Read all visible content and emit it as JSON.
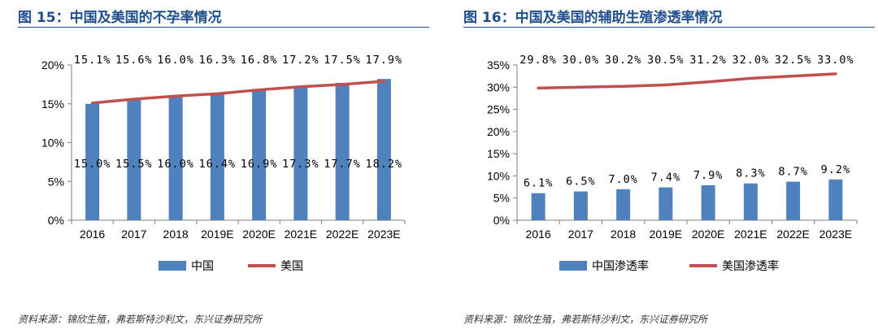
{
  "chart_data": [
    {
      "type": "bar",
      "title": "图 15：中国及美国的不孕率情况",
      "source": "资料来源：锦欣生殖，弗若斯特沙利文，东兴证券研究所",
      "categories": [
        "2016",
        "2017",
        "2018",
        "2019E",
        "2020E",
        "2021E",
        "2022E",
        "2023E"
      ],
      "ylim": [
        0,
        20
      ],
      "yticks": [
        "0%",
        "5%",
        "10%",
        "15%",
        "20%"
      ],
      "series": [
        {
          "name": "中国",
          "kind": "bar",
          "color": "#4f81bd",
          "values": [
            15.0,
            15.5,
            16.0,
            16.4,
            16.9,
            17.3,
            17.7,
            18.2
          ],
          "labels": [
            "15.0%",
            "15.5%",
            "16.0%",
            "16.4%",
            "16.9%",
            "17.3%",
            "17.7%",
            "18.2%"
          ]
        },
        {
          "name": "美国",
          "kind": "line",
          "color": "#c0504d",
          "values": [
            15.1,
            15.6,
            16.0,
            16.3,
            16.8,
            17.2,
            17.5,
            17.9
          ],
          "labels": [
            "15.1%",
            "15.6%",
            "16.0%",
            "16.3%",
            "16.8%",
            "17.2%",
            "17.5%",
            "17.9%"
          ]
        }
      ],
      "legend": "bottom"
    },
    {
      "type": "bar",
      "title": "图 16：中国及美国的辅助生殖渗透率情况",
      "source": "资料来源：锦欣生殖，弗若斯特沙利文，东兴证券研究所",
      "categories": [
        "2016",
        "2017",
        "2018",
        "2019E",
        "2020E",
        "2021E",
        "2022E",
        "2023E"
      ],
      "ylim": [
        0,
        35
      ],
      "yticks": [
        "0%",
        "5%",
        "10%",
        "15%",
        "20%",
        "25%",
        "30%",
        "35%"
      ],
      "series": [
        {
          "name": "中国渗透率",
          "kind": "bar",
          "color": "#4f81bd",
          "values": [
            6.1,
            6.5,
            7.0,
            7.4,
            7.9,
            8.3,
            8.7,
            9.2
          ],
          "labels": [
            "6.1%",
            "6.5%",
            "7.0%",
            "7.4%",
            "7.9%",
            "8.3%",
            "8.7%",
            "9.2%"
          ]
        },
        {
          "name": "美国渗透率",
          "kind": "line",
          "color": "#c0504d",
          "values": [
            29.8,
            30.0,
            30.2,
            30.5,
            31.2,
            32.0,
            32.5,
            33.0
          ],
          "labels": [
            "29.8%",
            "30.0%",
            "30.2%",
            "30.5%",
            "31.2%",
            "32.0%",
            "32.5%",
            "33.0%"
          ]
        }
      ],
      "legend": "bottom"
    }
  ]
}
